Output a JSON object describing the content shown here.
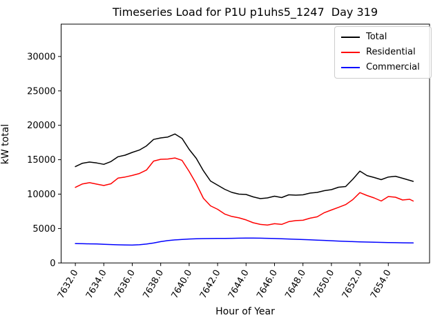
{
  "chart_data": {
    "type": "line",
    "title": "Timeseries Load for P1U p1uhs5_1247  Day 319",
    "xlabel": "Hour of Year",
    "ylabel": "kW total",
    "grid": false,
    "legend_position": "upper right",
    "xlim": [
      7631.0,
      7656.9
    ],
    "ylim": [
      0,
      34700
    ],
    "xticks": [
      7632,
      7634,
      7636,
      7638,
      7640,
      7642,
      7644,
      7646,
      7648,
      7650,
      7652,
      7654
    ],
    "xtick_labels": [
      "7632.0",
      "7634.0",
      "7636.0",
      "7638.0",
      "7640.0",
      "7642.0",
      "7644.0",
      "7646.0",
      "7648.0",
      "7650.0",
      "7652.0",
      "7654.0"
    ],
    "xtick_rotation_deg": 60,
    "yticks": [
      0,
      5000,
      10000,
      15000,
      20000,
      25000,
      30000
    ],
    "ytick_labels": [
      "0",
      "5000",
      "10000",
      "15000",
      "20000",
      "25000",
      "30000"
    ],
    "x": [
      7632.0,
      7632.5,
      7633.0,
      7633.5,
      7634.0,
      7634.5,
      7635.0,
      7635.5,
      7636.0,
      7636.5,
      7637.0,
      7637.5,
      7638.0,
      7638.5,
      7639.0,
      7639.5,
      7640.0,
      7640.5,
      7641.0,
      7641.5,
      7642.0,
      7642.5,
      7643.0,
      7643.5,
      7644.0,
      7644.5,
      7645.0,
      7645.5,
      7646.0,
      7646.5,
      7647.0,
      7647.5,
      7648.0,
      7648.5,
      7649.0,
      7649.5,
      7650.0,
      7650.5,
      7651.0,
      7651.5,
      7652.0,
      7652.5,
      7653.0,
      7653.5,
      7654.0,
      7654.5,
      7655.0,
      7655.5,
      7655.75
    ],
    "series": [
      {
        "name": "Total",
        "color": "#000000",
        "values": [
          14000,
          14490,
          14660,
          14530,
          14330,
          14730,
          15430,
          15660,
          16060,
          16400,
          17000,
          17950,
          18170,
          18300,
          18740,
          18100,
          16500,
          15200,
          13400,
          11900,
          11300,
          10700,
          10250,
          10000,
          9950,
          9600,
          9350,
          9450,
          9700,
          9500,
          9900,
          9850,
          9900,
          10150,
          10250,
          10500,
          10650,
          11000,
          11100,
          12150,
          13350,
          12700,
          12420,
          12100,
          12490,
          12600,
          12300,
          12000,
          11850
        ]
      },
      {
        "name": "Residential",
        "color": "#ff0000",
        "values": [
          10980,
          11480,
          11660,
          11450,
          11250,
          11500,
          12320,
          12490,
          12720,
          13000,
          13500,
          14800,
          15060,
          15100,
          15250,
          14900,
          13300,
          11500,
          9400,
          8300,
          7800,
          7100,
          6750,
          6550,
          6250,
          5840,
          5600,
          5500,
          5700,
          5600,
          6000,
          6150,
          6200,
          6500,
          6700,
          7300,
          7700,
          8080,
          8480,
          9200,
          10220,
          9800,
          9450,
          9000,
          9650,
          9550,
          9150,
          9250,
          9000
        ]
      },
      {
        "name": "Commercial",
        "color": "#0000ff",
        "values": [
          2820,
          2800,
          2780,
          2760,
          2720,
          2680,
          2640,
          2610,
          2600,
          2650,
          2750,
          2900,
          3100,
          3250,
          3350,
          3420,
          3480,
          3520,
          3540,
          3550,
          3560,
          3570,
          3580,
          3600,
          3620,
          3620,
          3600,
          3580,
          3550,
          3520,
          3480,
          3440,
          3400,
          3360,
          3320,
          3280,
          3230,
          3180,
          3140,
          3100,
          3070,
          3040,
          3010,
          2990,
          2970,
          2950,
          2930,
          2915,
          2910
        ]
      }
    ]
  }
}
